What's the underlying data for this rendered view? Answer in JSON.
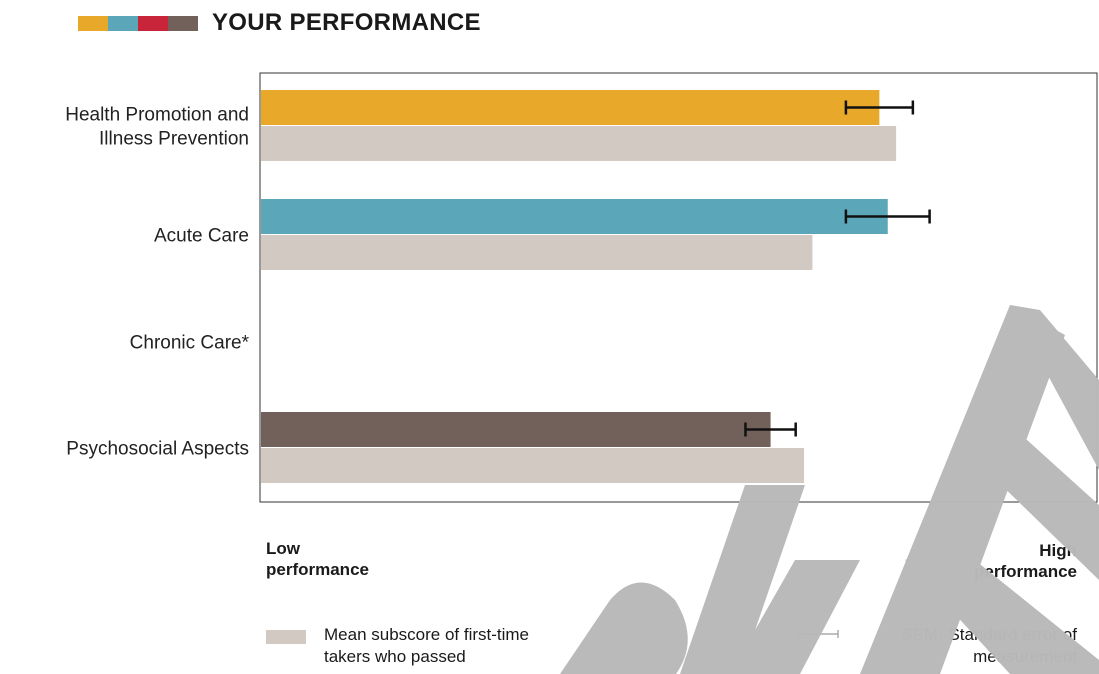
{
  "header": {
    "title": "YOUR PERFORMANCE",
    "swatch_colors": [
      "#e8a92a",
      "#5ba6b8",
      "#c8253b",
      "#72615a"
    ]
  },
  "chart_data": {
    "type": "bar",
    "orientation": "horizontal",
    "categories": [
      [
        "Health Promotion and",
        "Illness Prevention"
      ],
      [
        "Acute Care"
      ],
      [
        "Chronic Care*"
      ],
      [
        "Psychosocial Aspects"
      ]
    ],
    "series": [
      {
        "name": "Your performance",
        "values": [
          0.74,
          0.75,
          null,
          0.61
        ],
        "sem": [
          0.04,
          0.05,
          null,
          0.03
        ],
        "colors": [
          "#e8a92a",
          "#5ba6b8",
          "#c8253b",
          "#72615a"
        ]
      },
      {
        "name": "Mean subscore of first-time takers who passed",
        "values": [
          0.76,
          0.66,
          null,
          0.65
        ],
        "color": "#d3c9c3"
      }
    ],
    "xlim": [
      0,
      1
    ],
    "grid": false,
    "legend_position": "bottom"
  },
  "axis": {
    "low_label": [
      "Low",
      "performance"
    ],
    "high_label": [
      "High",
      "performance"
    ]
  },
  "legend": {
    "mean_text": [
      "Mean subscore of first-time",
      "takers who passed"
    ],
    "sem_term": "SEM:",
    "sem_text_first": " Standard error of",
    "sem_text_second": "measurement",
    "mean_color": "#d3c9c3"
  },
  "watermark": {
    "text": "SAMPLE",
    "color": "#b9b9b9"
  }
}
